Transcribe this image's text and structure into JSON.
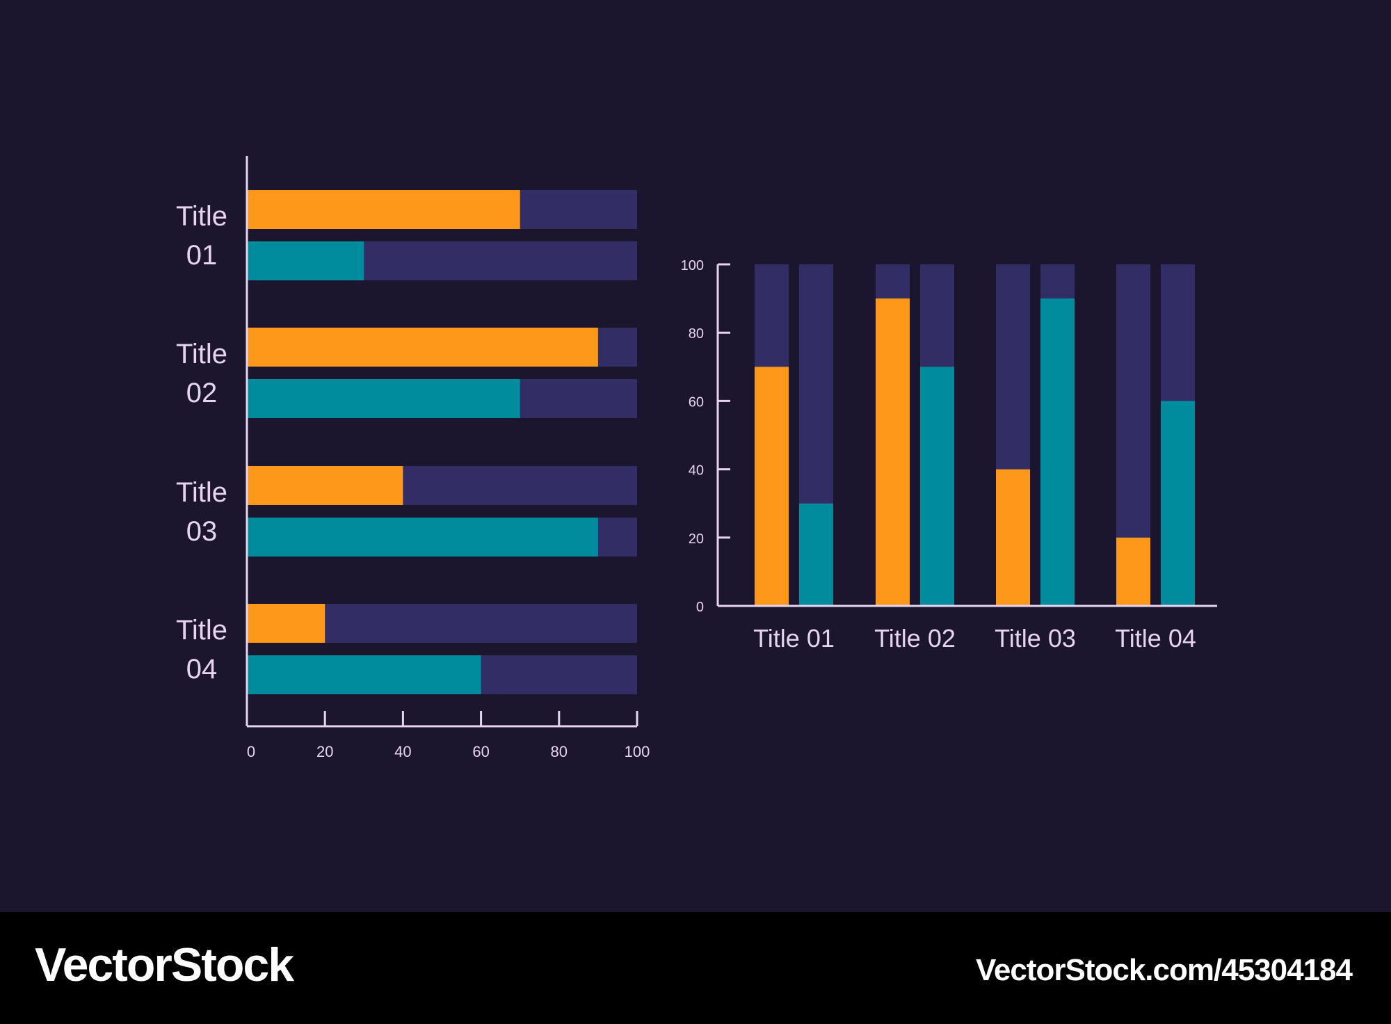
{
  "colors": {
    "background": "#1c152e",
    "track": "#322d64",
    "orange": "#fe981a",
    "teal": "#008c9d",
    "axis": "#e6d4f0",
    "label": "#e6d4f0"
  },
  "chart_data": [
    {
      "type": "bar",
      "orientation": "horizontal",
      "categories": [
        [
          "Title",
          "01"
        ],
        [
          "Title",
          "02"
        ],
        [
          "Title",
          "03"
        ],
        [
          "Title",
          "04"
        ]
      ],
      "series": [
        {
          "values": [
            70,
            90,
            40,
            20
          ],
          "color": "#fe981a"
        },
        {
          "values": [
            30,
            70,
            90,
            60
          ],
          "color": "#008c9d"
        }
      ],
      "xlim": [
        0,
        100
      ],
      "xticks": [
        0,
        20,
        40,
        60,
        80,
        100
      ],
      "grid": false
    },
    {
      "type": "bar",
      "orientation": "vertical",
      "categories": [
        "Title 01",
        "Title 02",
        "Title 03",
        "Title 04"
      ],
      "series": [
        {
          "values": [
            70,
            90,
            40,
            20
          ],
          "color": "#fe981a"
        },
        {
          "values": [
            30,
            70,
            90,
            60
          ],
          "color": "#008c9d"
        }
      ],
      "ylim": [
        0,
        100
      ],
      "yticks": [
        0,
        20,
        40,
        60,
        80,
        100
      ],
      "grid": false
    }
  ],
  "footer": {
    "brand": "VectorStock",
    "url": "VectorStock.com/45304184"
  }
}
